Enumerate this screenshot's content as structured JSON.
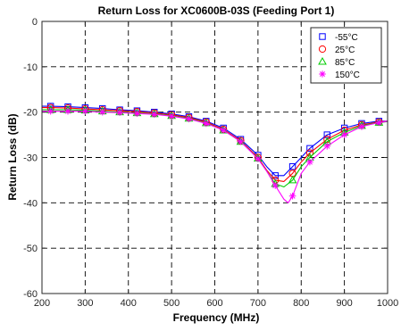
{
  "chart_data": {
    "type": "line",
    "title": "Return Loss for XC0600B-03S (Feeding Port 1)",
    "xlabel": "Frequency (MHz)",
    "ylabel": "Return Loss (dB)",
    "xlim": [
      200,
      1000
    ],
    "ylim": [
      -60,
      0
    ],
    "xticks": [
      200,
      300,
      400,
      500,
      600,
      700,
      800,
      900,
      1000
    ],
    "yticks": [
      0,
      -10,
      -20,
      -30,
      -40,
      -50,
      -60
    ],
    "grid": true,
    "legend_position": "top-right",
    "series": [
      {
        "name": "-55°C",
        "color": "#0000ff",
        "marker": "square",
        "curve_x": [
          200,
          220,
          260,
          300,
          340,
          380,
          420,
          460,
          500,
          540,
          580,
          620,
          660,
          700,
          720,
          740,
          760,
          780,
          800,
          820,
          860,
          900,
          940,
          980,
          1000
        ],
        "curve_y": [
          -18.7,
          -18.7,
          -18.8,
          -19.0,
          -19.2,
          -19.5,
          -19.7,
          -20.0,
          -20.4,
          -21.0,
          -22.0,
          -23.5,
          -26.0,
          -29.5,
          -32.0,
          -34.0,
          -34.0,
          -32.0,
          -30.0,
          -28.0,
          -25.0,
          -23.5,
          -22.5,
          -22.0,
          -22.0
        ],
        "marker_x": [
          220,
          260,
          300,
          340,
          380,
          420,
          460,
          500,
          540,
          580,
          620,
          660,
          700,
          740,
          780,
          820,
          860,
          900,
          940,
          980
        ],
        "marker_y": [
          -18.7,
          -18.8,
          -19.0,
          -19.2,
          -19.5,
          -19.7,
          -20.0,
          -20.4,
          -21.0,
          -22.0,
          -23.5,
          -26.0,
          -29.5,
          -34.0,
          -32.0,
          -28.0,
          -25.0,
          -23.5,
          -22.5,
          -22.0
        ]
      },
      {
        "name": "25°C",
        "color": "#ff0000",
        "marker": "circle",
        "curve_x": [
          200,
          220,
          260,
          300,
          340,
          380,
          420,
          460,
          500,
          540,
          580,
          620,
          660,
          700,
          720,
          740,
          760,
          780,
          800,
          820,
          860,
          900,
          940,
          980,
          1000
        ],
        "curve_y": [
          -19.0,
          -19.0,
          -19.1,
          -19.3,
          -19.5,
          -19.7,
          -19.9,
          -20.2,
          -20.6,
          -21.2,
          -22.2,
          -23.8,
          -26.3,
          -30.0,
          -32.8,
          -35.0,
          -35.3,
          -33.5,
          -31.0,
          -29.0,
          -26.0,
          -24.0,
          -22.8,
          -22.2,
          -22.0
        ],
        "marker_x": [
          220,
          260,
          300,
          340,
          380,
          420,
          460,
          500,
          540,
          580,
          620,
          660,
          700,
          740,
          780,
          820,
          860,
          900,
          940,
          980
        ],
        "marker_y": [
          -19.0,
          -19.1,
          -19.3,
          -19.5,
          -19.7,
          -19.9,
          -20.2,
          -20.6,
          -21.2,
          -22.2,
          -23.8,
          -26.3,
          -30.0,
          -35.0,
          -33.5,
          -29.0,
          -26.0,
          -24.0,
          -22.8,
          -22.2
        ]
      },
      {
        "name": "85°C",
        "color": "#00cc00",
        "marker": "triangle",
        "curve_x": [
          200,
          220,
          260,
          300,
          340,
          380,
          420,
          460,
          500,
          540,
          580,
          620,
          660,
          700,
          720,
          740,
          760,
          780,
          800,
          820,
          860,
          900,
          940,
          980,
          1000
        ],
        "curve_y": [
          -19.5,
          -19.5,
          -19.5,
          -19.6,
          -19.8,
          -20.0,
          -20.2,
          -20.4,
          -20.8,
          -21.4,
          -22.4,
          -24.0,
          -26.5,
          -30.2,
          -33.0,
          -35.8,
          -36.5,
          -35.0,
          -32.0,
          -30.0,
          -26.5,
          -24.5,
          -23.0,
          -22.3,
          -22.1
        ],
        "marker_x": [
          220,
          260,
          300,
          340,
          380,
          420,
          460,
          500,
          540,
          580,
          620,
          660,
          700,
          740,
          780,
          820,
          860,
          900,
          940,
          980
        ],
        "marker_y": [
          -19.5,
          -19.5,
          -19.6,
          -19.8,
          -20.0,
          -20.2,
          -20.4,
          -20.8,
          -21.4,
          -22.4,
          -24.0,
          -26.5,
          -30.2,
          -35.8,
          -35.0,
          -30.0,
          -26.5,
          -24.5,
          -23.0,
          -22.3
        ]
      },
      {
        "name": "150°C",
        "color": "#ff00ff",
        "marker": "star",
        "curve_x": [
          200,
          220,
          260,
          300,
          340,
          380,
          420,
          460,
          500,
          540,
          580,
          620,
          660,
          700,
          720,
          740,
          760,
          770,
          780,
          800,
          820,
          860,
          900,
          940,
          980,
          1000
        ],
        "curve_y": [
          -19.8,
          -19.8,
          -19.8,
          -19.8,
          -20.0,
          -20.1,
          -20.3,
          -20.5,
          -20.9,
          -21.5,
          -22.5,
          -24.0,
          -26.5,
          -30.3,
          -33.0,
          -36.2,
          -39.2,
          -40.0,
          -38.5,
          -33.5,
          -31.0,
          -27.5,
          -25.0,
          -23.2,
          -22.3,
          -22.0
        ],
        "marker_x": [
          220,
          260,
          300,
          340,
          380,
          420,
          460,
          500,
          540,
          580,
          620,
          660,
          700,
          740,
          780,
          820,
          860,
          900,
          940,
          980
        ],
        "marker_y": [
          -19.8,
          -19.8,
          -19.8,
          -20.0,
          -20.1,
          -20.3,
          -20.5,
          -20.9,
          -21.5,
          -22.5,
          -24.0,
          -26.5,
          -30.3,
          -36.2,
          -38.5,
          -31.0,
          -27.5,
          -25.0,
          -23.2,
          -22.3
        ]
      }
    ]
  }
}
